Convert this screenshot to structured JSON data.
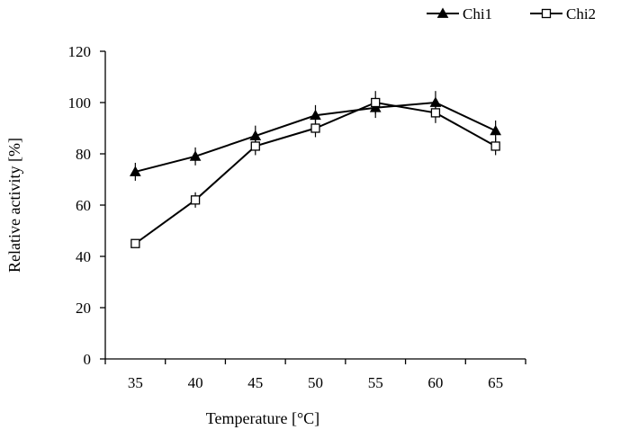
{
  "chart_data": {
    "type": "line",
    "xlabel": "Temperature [°C]",
    "ylabel": "Relative activity  [%]",
    "x": [
      35,
      40,
      45,
      50,
      55,
      60,
      65
    ],
    "xticks": [
      "35",
      "40",
      "45",
      "50",
      "55",
      "60",
      "65"
    ],
    "ylim": [
      0,
      120
    ],
    "yticks": [
      0,
      20,
      40,
      60,
      80,
      100,
      120
    ],
    "grid": false,
    "legend_position": "top-right",
    "series": [
      {
        "name": "Chi1",
        "marker": "filled-triangle",
        "values": [
          73,
          79,
          87,
          95,
          98,
          100,
          89
        ],
        "errors": [
          3.5,
          3.5,
          4,
          4,
          4,
          4.5,
          4
        ]
      },
      {
        "name": "Chi2",
        "marker": "open-square",
        "values": [
          45,
          62,
          83,
          90,
          100,
          96,
          83
        ],
        "errors": [
          0,
          3,
          3.5,
          3.5,
          4.5,
          4,
          3.5
        ]
      }
    ]
  }
}
